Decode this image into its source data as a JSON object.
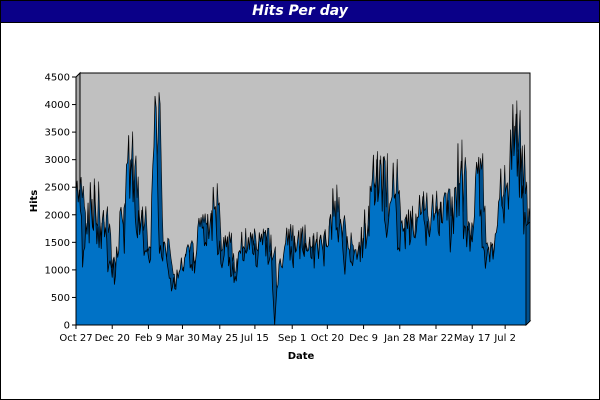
{
  "chart_data": {
    "type": "area",
    "title": "Hits Per day",
    "xlabel": "Date",
    "ylabel": "Hits",
    "ylim": [
      0,
      4500
    ],
    "yticks": [
      0,
      500,
      1000,
      1500,
      2000,
      2500,
      3000,
      3500,
      4000,
      4500
    ],
    "x_tick_labels": [
      "Oct 27",
      "Dec 20",
      "Feb 9",
      "Mar 30",
      "May 25",
      "Jul 15",
      "Sep 1",
      "Oct 20",
      "Dec 9",
      "Jan 28",
      "Mar 22",
      "May 17",
      "Jul 2"
    ],
    "x_tick_positions": [
      0,
      33,
      66,
      97,
      131,
      163,
      197,
      229,
      262,
      295,
      328,
      361,
      391
    ],
    "x_count": 411,
    "grid": false,
    "legend": "none",
    "colors": {
      "plot_background": "#c0c0c0",
      "area_fill": "#0066b3",
      "area_front": "#0072c6",
      "series_line": "#000000",
      "floor": "#9a9a9a",
      "title_bar": "#0a0088",
      "title_text": "#ffffff"
    },
    "series": [
      {
        "values_approx_daily_by_index": [
          [
            0,
            2400
          ],
          [
            3,
            2450
          ],
          [
            6,
            1050
          ],
          [
            10,
            1650
          ],
          [
            14,
            2100
          ],
          [
            18,
            1900
          ],
          [
            22,
            1800
          ],
          [
            26,
            1600
          ],
          [
            30,
            1100
          ],
          [
            36,
            900
          ],
          [
            40,
            2050
          ],
          [
            44,
            1300
          ],
          [
            47,
            2950
          ],
          [
            51,
            3000
          ],
          [
            55,
            1700
          ],
          [
            59,
            1800
          ],
          [
            63,
            1350
          ],
          [
            68,
            1200
          ],
          [
            72,
            4150
          ],
          [
            76,
            1300
          ],
          [
            80,
            1500
          ],
          [
            84,
            1000
          ],
          [
            88,
            700
          ],
          [
            93,
            850
          ],
          [
            97,
            1000
          ],
          [
            101,
            1400
          ],
          [
            105,
            1100
          ],
          [
            110,
            1350
          ],
          [
            114,
            1950
          ],
          [
            118,
            1500
          ],
          [
            122,
            1800
          ],
          [
            126,
            2100
          ],
          [
            130,
            1300
          ],
          [
            134,
            1150
          ],
          [
            138,
            1600
          ],
          [
            142,
            900
          ],
          [
            146,
            800
          ],
          [
            150,
            1300
          ],
          [
            156,
            1350
          ],
          [
            161,
            1300
          ],
          [
            165,
            1050
          ],
          [
            169,
            1650
          ],
          [
            173,
            1250
          ],
          [
            178,
            1350
          ],
          [
            181,
            0
          ],
          [
            185,
            1100
          ],
          [
            189,
            1250
          ],
          [
            193,
            1450
          ],
          [
            197,
            1200
          ],
          [
            202,
            1550
          ],
          [
            206,
            1400
          ],
          [
            210,
            1350
          ],
          [
            215,
            1200
          ],
          [
            220,
            1450
          ],
          [
            225,
            1350
          ],
          [
            230,
            1450
          ],
          [
            236,
            2250
          ],
          [
            240,
            1800
          ],
          [
            244,
            1150
          ],
          [
            248,
            1400
          ],
          [
            253,
            1250
          ],
          [
            257,
            1300
          ],
          [
            262,
            1550
          ],
          [
            266,
            1800
          ],
          [
            270,
            2650
          ],
          [
            274,
            3000
          ],
          [
            278,
            2900
          ],
          [
            282,
            1800
          ],
          [
            286,
            2200
          ],
          [
            290,
            2300
          ],
          [
            294,
            1400
          ],
          [
            298,
            1700
          ],
          [
            302,
            1750
          ],
          [
            306,
            1950
          ],
          [
            310,
            1700
          ],
          [
            314,
            2000
          ],
          [
            318,
            1800
          ],
          [
            322,
            1600
          ],
          [
            326,
            1900
          ],
          [
            330,
            1700
          ],
          [
            334,
            1850
          ],
          [
            338,
            1900
          ],
          [
            342,
            1650
          ],
          [
            346,
            2500
          ],
          [
            350,
            2650
          ],
          [
            354,
            1800
          ],
          [
            358,
            1700
          ],
          [
            362,
            1750
          ],
          [
            366,
            2750
          ],
          [
            370,
            1400
          ],
          [
            374,
            1200
          ],
          [
            378,
            1500
          ],
          [
            382,
            1650
          ],
          [
            386,
            2300
          ],
          [
            390,
            1850
          ],
          [
            394,
            2100
          ],
          [
            398,
            4000
          ],
          [
            402,
            2700
          ],
          [
            405,
            3200
          ],
          [
            408,
            1650
          ],
          [
            410,
            1800
          ]
        ]
      }
    ]
  }
}
